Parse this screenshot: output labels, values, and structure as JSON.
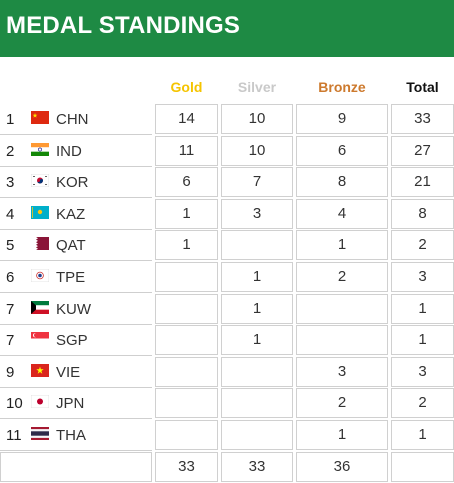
{
  "title": "MEDAL STANDINGS",
  "colors": {
    "banner": "#1e8a44",
    "gold": "#f5c400",
    "silver": "#c9c9c9",
    "bronze": "#cd7a2e",
    "total": "#111111"
  },
  "headers": {
    "gold": "Gold",
    "silver": "Silver",
    "bronze": "Bronze",
    "total": "Total"
  },
  "rows": [
    {
      "rank": "1",
      "code": "CHN",
      "flag": "china-flag-icon",
      "gold": "14",
      "silver": "10",
      "bronze": "9",
      "total": "33"
    },
    {
      "rank": "2",
      "code": "IND",
      "flag": "india-flag-icon",
      "gold": "11",
      "silver": "10",
      "bronze": "6",
      "total": "27"
    },
    {
      "rank": "3",
      "code": "KOR",
      "flag": "south-korea-flag-icon",
      "gold": "6",
      "silver": "7",
      "bronze": "8",
      "total": "21"
    },
    {
      "rank": "4",
      "code": "KAZ",
      "flag": "kazakhstan-flag-icon",
      "gold": "1",
      "silver": "3",
      "bronze": "4",
      "total": "8"
    },
    {
      "rank": "5",
      "code": "QAT",
      "flag": "qatar-flag-icon",
      "gold": "1",
      "silver": "",
      "bronze": "1",
      "total": "2"
    },
    {
      "rank": "6",
      "code": "TPE",
      "flag": "chinese-taipei-flag-icon",
      "gold": "",
      "silver": "1",
      "bronze": "2",
      "total": "3"
    },
    {
      "rank": "7",
      "code": "KUW",
      "flag": "kuwait-flag-icon",
      "gold": "",
      "silver": "1",
      "bronze": "",
      "total": "1"
    },
    {
      "rank": "7",
      "code": "SGP",
      "flag": "singapore-flag-icon",
      "gold": "",
      "silver": "1",
      "bronze": "",
      "total": "1"
    },
    {
      "rank": "9",
      "code": "VIE",
      "flag": "vietnam-flag-icon",
      "gold": "",
      "silver": "",
      "bronze": "3",
      "total": "3"
    },
    {
      "rank": "10",
      "code": "JPN",
      "flag": "japan-flag-icon",
      "gold": "",
      "silver": "",
      "bronze": "2",
      "total": "2"
    },
    {
      "rank": "11",
      "code": "THA",
      "flag": "thailand-flag-icon",
      "gold": "",
      "silver": "",
      "bronze": "1",
      "total": "1"
    }
  ],
  "totals": {
    "gold": "33",
    "silver": "33",
    "bronze": "36",
    "total": ""
  }
}
